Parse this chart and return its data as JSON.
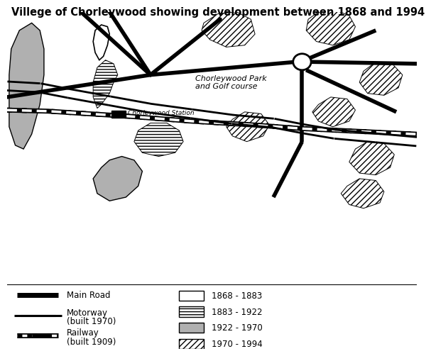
{
  "title": "Villege of Chorleywood showing development between 1868 and 1994",
  "title_fontsize": 10.5,
  "bg_color": "#ffffff",
  "park_label": "Chorleywood Park\nand Golf course",
  "station_label": "Chorleywood Station"
}
